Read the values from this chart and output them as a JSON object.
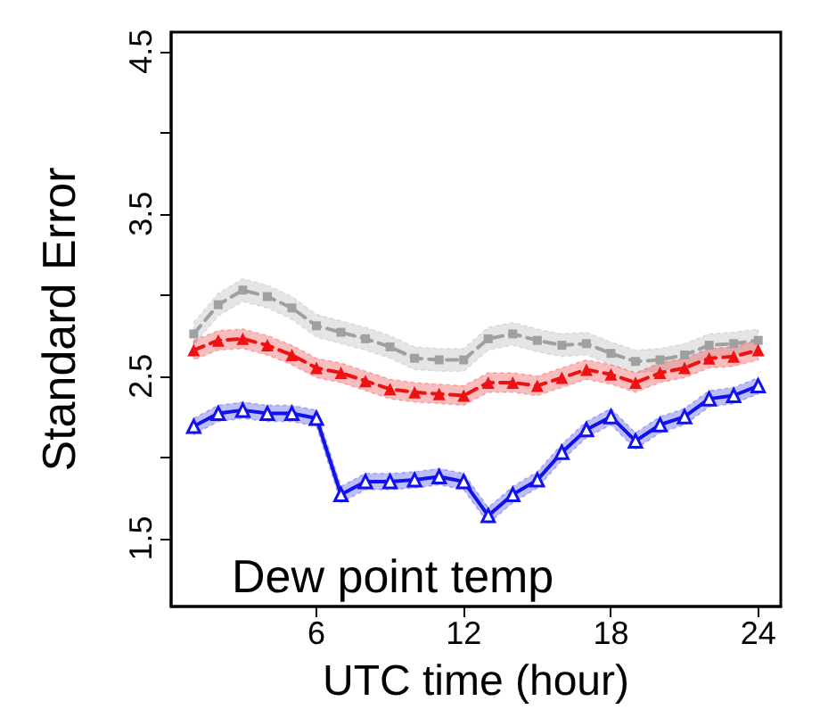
{
  "chart_data": {
    "type": "line",
    "xlabel": "UTC time (hour)",
    "ylabel": "Standard Error",
    "annotations": [
      "Dew point temp"
    ],
    "x": [
      1,
      2,
      3,
      4,
      5,
      6,
      7,
      8,
      9,
      10,
      11,
      12,
      13,
      14,
      15,
      16,
      17,
      18,
      19,
      20,
      21,
      22,
      23,
      24
    ],
    "xlim": [
      0.08,
      24.92
    ],
    "xticks": [
      6,
      12,
      18,
      24
    ],
    "ylim": [
      1.08,
      4.62
    ],
    "yticks": [
      1.5,
      {
        "value": 2,
        "label": null
      },
      2.5,
      {
        "value": 3,
        "label": null
      },
      3.5,
      {
        "value": 4,
        "label": null
      },
      4.5
    ],
    "series": [
      {
        "color": "#a0a0a0",
        "marker": "square",
        "line_style": "dashed",
        "values": [
          2.76,
          2.94,
          3.03,
          2.99,
          2.92,
          2.81,
          2.77,
          2.73,
          2.68,
          2.61,
          2.6,
          2.6,
          2.73,
          2.76,
          2.72,
          2.69,
          2.7,
          2.64,
          2.59,
          2.6,
          2.63,
          2.69,
          2.7,
          2.72
        ],
        "lower": [
          2.69,
          2.87,
          2.96,
          2.92,
          2.85,
          2.74,
          2.7,
          2.66,
          2.61,
          2.54,
          2.53,
          2.53,
          2.66,
          2.69,
          2.65,
          2.62,
          2.63,
          2.57,
          2.52,
          2.53,
          2.56,
          2.62,
          2.63,
          2.65
        ],
        "upper": [
          2.83,
          3.01,
          3.1,
          3.06,
          2.99,
          2.88,
          2.84,
          2.8,
          2.75,
          2.68,
          2.67,
          2.67,
          2.8,
          2.83,
          2.79,
          2.76,
          2.77,
          2.71,
          2.66,
          2.67,
          2.7,
          2.76,
          2.77,
          2.79
        ]
      },
      {
        "color": "#ee1111",
        "marker": "triangle",
        "line_style": "dashed",
        "values": [
          2.66,
          2.72,
          2.73,
          2.69,
          2.63,
          2.55,
          2.52,
          2.47,
          2.42,
          2.4,
          2.39,
          2.38,
          2.46,
          2.46,
          2.44,
          2.49,
          2.54,
          2.51,
          2.46,
          2.52,
          2.55,
          2.61,
          2.62,
          2.66
        ],
        "lower": [
          2.6,
          2.66,
          2.67,
          2.63,
          2.57,
          2.49,
          2.46,
          2.41,
          2.36,
          2.34,
          2.33,
          2.32,
          2.4,
          2.4,
          2.38,
          2.43,
          2.48,
          2.45,
          2.4,
          2.46,
          2.49,
          2.55,
          2.56,
          2.6
        ],
        "upper": [
          2.72,
          2.78,
          2.79,
          2.75,
          2.69,
          2.61,
          2.58,
          2.53,
          2.48,
          2.46,
          2.45,
          2.44,
          2.52,
          2.52,
          2.5,
          2.55,
          2.6,
          2.57,
          2.52,
          2.58,
          2.61,
          2.67,
          2.68,
          2.72
        ]
      },
      {
        "color": "#1111ee",
        "marker": "triangle",
        "line_style": "solid",
        "values": [
          2.19,
          2.27,
          2.29,
          2.27,
          2.27,
          2.24,
          1.77,
          1.85,
          1.85,
          1.86,
          1.88,
          1.85,
          1.64,
          1.77,
          1.86,
          2.03,
          2.17,
          2.25,
          2.1,
          2.2,
          2.25,
          2.36,
          2.38,
          2.44
        ],
        "lower": [
          2.14,
          2.22,
          2.24,
          2.22,
          2.22,
          2.19,
          1.72,
          1.8,
          1.8,
          1.81,
          1.83,
          1.8,
          1.59,
          1.72,
          1.81,
          1.98,
          2.12,
          2.2,
          2.05,
          2.15,
          2.2,
          2.31,
          2.33,
          2.39
        ],
        "upper": [
          2.24,
          2.32,
          2.34,
          2.32,
          2.32,
          2.29,
          1.82,
          1.9,
          1.9,
          1.91,
          1.93,
          1.9,
          1.69,
          1.82,
          1.91,
          2.08,
          2.22,
          2.3,
          2.15,
          2.25,
          2.3,
          2.41,
          2.43,
          2.49
        ]
      }
    ]
  }
}
